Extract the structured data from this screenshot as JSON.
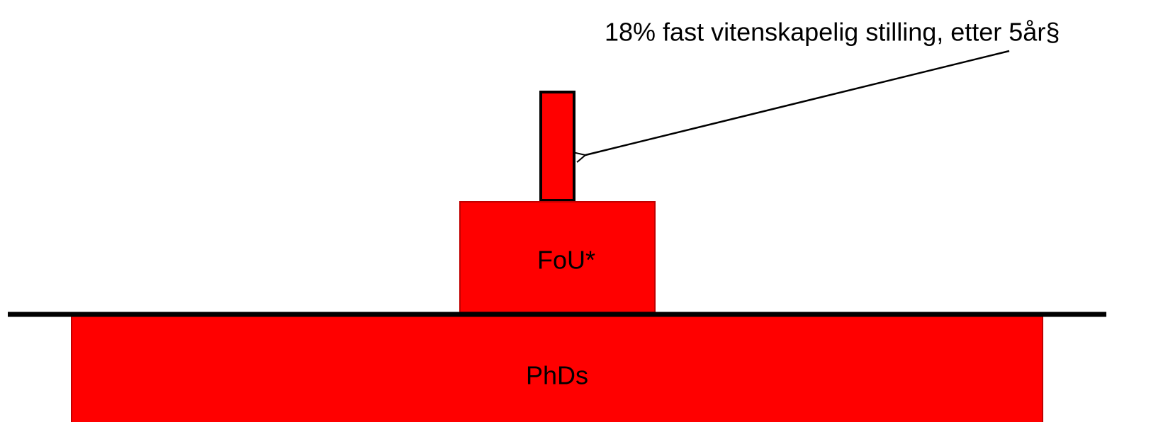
{
  "annotation": "18% fast vitenskapelig stilling, etter 5år§",
  "boxes": [
    {
      "label": "FoU*"
    },
    {
      "label": "PhDs"
    }
  ]
}
